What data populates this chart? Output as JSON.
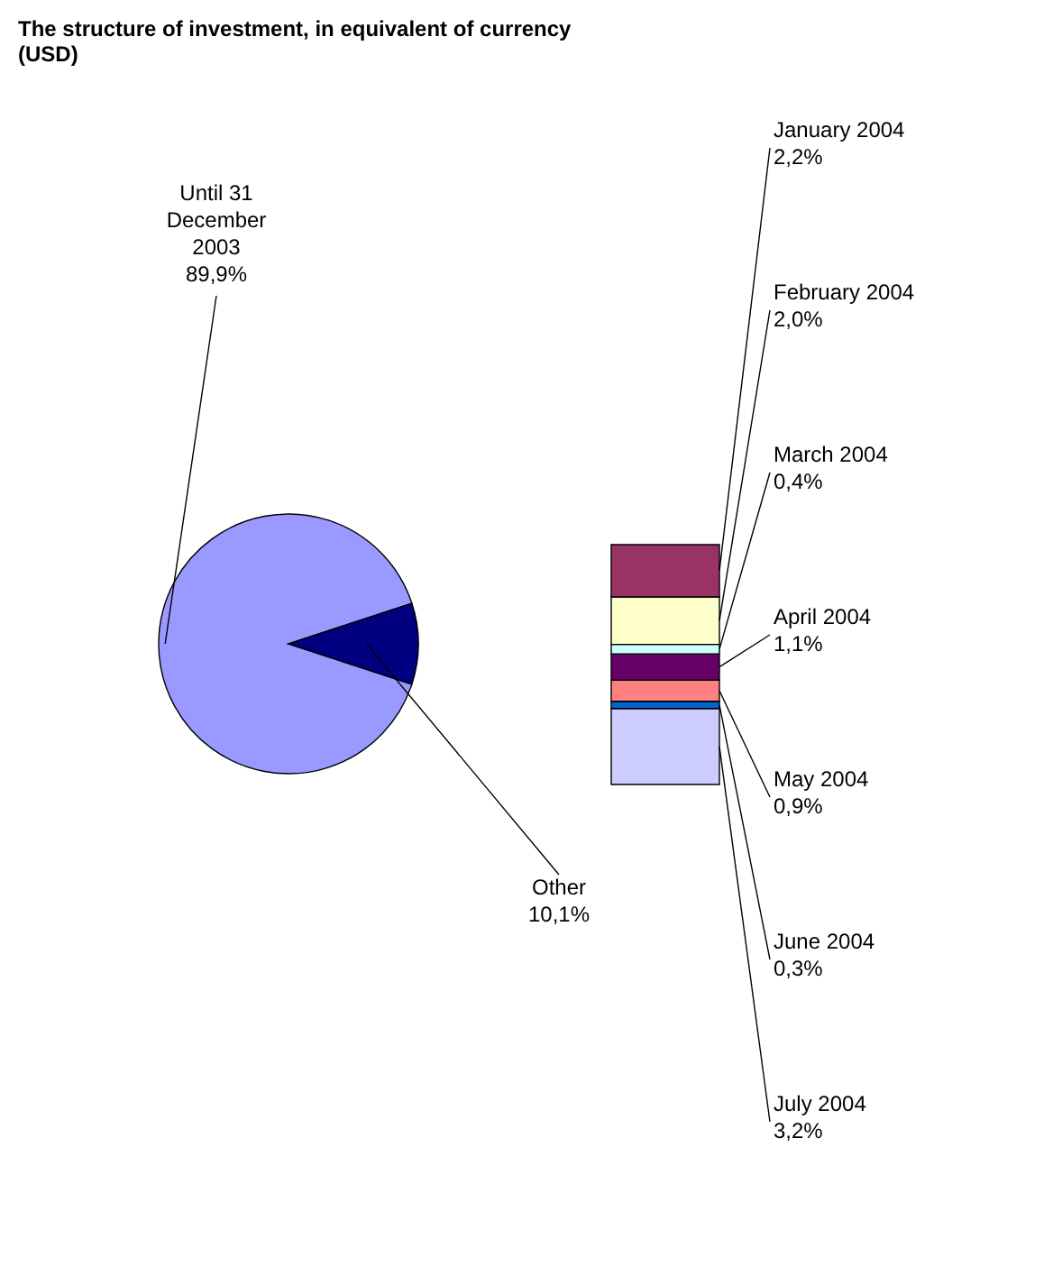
{
  "chart_data": [
    {
      "type": "pie",
      "title": "The structure of investment, in equivalent of currency (USD)",
      "categories": [
        "Until 31 December 2003",
        "Other"
      ],
      "values": [
        89.9,
        10.1
      ],
      "colors": [
        "#9999ff",
        "#000080"
      ],
      "value_labels": [
        "89,9%",
        "10,1%"
      ]
    },
    {
      "type": "bar",
      "stacked": true,
      "categories": [
        null
      ],
      "series": [
        {
          "name": "July 2004",
          "color": "#ccccff",
          "values": [
            3.2
          ],
          "value_labels": [
            "3,2%"
          ]
        },
        {
          "name": "June 2004",
          "color": "#0066cc",
          "values": [
            0.3
          ],
          "value_labels": [
            "0,3%"
          ]
        },
        {
          "name": "May 2004",
          "color": "#ff8080",
          "values": [
            0.9
          ],
          "value_labels": [
            "0,9%"
          ]
        },
        {
          "name": "April 2004",
          "color": "#660066",
          "values": [
            1.1
          ],
          "value_labels": [
            "1,1%"
          ]
        },
        {
          "name": "March 2004",
          "color": "#ccffff",
          "values": [
            0.4
          ],
          "value_labels": [
            "0,4%"
          ]
        },
        {
          "name": "February 2004",
          "color": "#ffffcc",
          "values": [
            2.0
          ],
          "value_labels": [
            "2,0%"
          ]
        },
        {
          "name": "January 2004",
          "color": "#993366",
          "values": [
            2.2
          ],
          "value_labels": [
            "2,2%"
          ]
        }
      ]
    }
  ]
}
